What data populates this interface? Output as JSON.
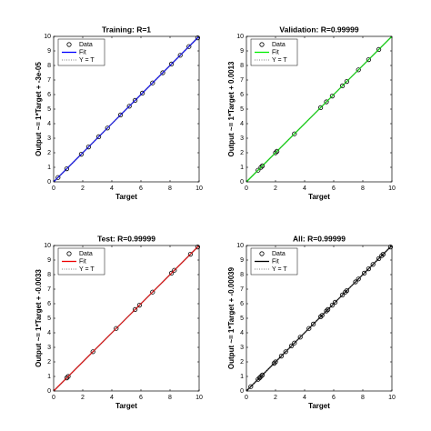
{
  "chart_data": [
    {
      "type": "scatter",
      "title": "Training: R=1",
      "x_label": "Target",
      "y_label": "Output ~= 1*Target + -3e-05",
      "xlim": [
        0,
        10
      ],
      "ylim": [
        0,
        10
      ],
      "xticks": [
        0,
        2,
        4,
        6,
        8,
        10
      ],
      "yticks": [
        0,
        1,
        2,
        3,
        4,
        5,
        6,
        7,
        8,
        9,
        10
      ],
      "legend": "upper left",
      "series": [
        {
          "name": "Data",
          "color": "#000000",
          "marker": "circle",
          "x": [
            0.3,
            0.9,
            1.9,
            2.4,
            3.1,
            3.7,
            4.6,
            5.2,
            5.6,
            6.1,
            6.8,
            7.5,
            8.1,
            8.7,
            9.3,
            9.9
          ],
          "values": [
            0.3,
            0.9,
            1.9,
            2.4,
            3.1,
            3.7,
            4.6,
            5.2,
            5.6,
            6.1,
            6.8,
            7.5,
            8.1,
            8.7,
            9.3,
            9.9
          ]
        },
        {
          "name": "Fit",
          "color": "#0000ff",
          "line_style": "solid",
          "x": [
            0,
            10
          ],
          "values": [
            0,
            10
          ]
        },
        {
          "name": "Y = T",
          "color": "#555555",
          "line_style": "dotted",
          "x": [
            0,
            10
          ],
          "values": [
            0,
            10
          ]
        }
      ]
    },
    {
      "type": "scatter",
      "title": "Validation: R=0.99999",
      "x_label": "Target",
      "y_label": "Output ~= 1*Target + 0.0013",
      "xlim": [
        0,
        10
      ],
      "ylim": [
        0,
        10
      ],
      "xticks": [
        0,
        2,
        4,
        6,
        8,
        10
      ],
      "yticks": [
        0,
        1,
        2,
        3,
        4,
        5,
        6,
        7,
        8,
        9,
        10
      ],
      "legend": "upper left",
      "series": [
        {
          "name": "Data",
          "color": "#000000",
          "marker": "circle",
          "x": [
            0.8,
            1.0,
            1.1,
            2.0,
            2.1,
            3.3,
            5.1,
            5.5,
            5.9,
            6.6,
            6.9,
            7.7,
            8.4,
            9.1
          ],
          "values": [
            0.8,
            1.0,
            1.1,
            2.0,
            2.1,
            3.3,
            5.1,
            5.5,
            5.9,
            6.6,
            6.9,
            7.7,
            8.4,
            9.1
          ]
        },
        {
          "name": "Fit",
          "color": "#00ee00",
          "line_style": "solid",
          "x": [
            0,
            10
          ],
          "values": [
            0,
            10
          ]
        },
        {
          "name": "Y = T",
          "color": "#555555",
          "line_style": "dotted",
          "x": [
            0,
            10
          ],
          "values": [
            0,
            10
          ]
        }
      ]
    },
    {
      "type": "scatter",
      "title": "Test: R=0.99999",
      "x_label": "Target",
      "y_label": "Output ~= 1*Target + -0.0033",
      "xlim": [
        0,
        10
      ],
      "ylim": [
        0,
        10
      ],
      "xticks": [
        0,
        2,
        4,
        6,
        8,
        10
      ],
      "yticks": [
        0,
        1,
        2,
        3,
        4,
        5,
        6,
        7,
        8,
        9,
        10
      ],
      "legend": "upper left",
      "series": [
        {
          "name": "Data",
          "color": "#000000",
          "marker": "circle",
          "x": [
            0.9,
            1.0,
            2.7,
            4.3,
            5.6,
            5.9,
            6.8,
            8.1,
            8.3,
            9.4,
            9.9
          ],
          "values": [
            0.9,
            1.0,
            2.7,
            4.3,
            5.6,
            5.9,
            6.8,
            8.1,
            8.3,
            9.4,
            9.9
          ]
        },
        {
          "name": "Fit",
          "color": "#ee0000",
          "line_style": "solid",
          "x": [
            0,
            10
          ],
          "values": [
            0,
            10
          ]
        },
        {
          "name": "Y = T",
          "color": "#555555",
          "line_style": "dotted",
          "x": [
            0,
            10
          ],
          "values": [
            0,
            10
          ]
        }
      ]
    },
    {
      "type": "scatter",
      "title": "All: R=0.99999",
      "x_label": "Target",
      "y_label": "Output ~= 1*Target + -0.00039",
      "xlim": [
        0,
        10
      ],
      "ylim": [
        0,
        10
      ],
      "xticks": [
        0,
        2,
        4,
        6,
        8,
        10
      ],
      "yticks": [
        0,
        1,
        2,
        3,
        4,
        5,
        6,
        7,
        8,
        9,
        10
      ],
      "legend": "upper left",
      "series": [
        {
          "name": "Data",
          "color": "#000000",
          "marker": "circle",
          "x": [
            0.3,
            0.8,
            0.9,
            1.0,
            1.1,
            1.9,
            2.0,
            2.4,
            2.7,
            3.1,
            3.3,
            3.7,
            4.3,
            4.6,
            5.1,
            5.2,
            5.5,
            5.6,
            5.9,
            6.1,
            6.6,
            6.8,
            6.9,
            7.5,
            7.7,
            8.1,
            8.4,
            8.7,
            9.1,
            9.3,
            9.4,
            9.9
          ],
          "values": [
            0.3,
            0.8,
            0.9,
            1.0,
            1.1,
            1.9,
            2.0,
            2.4,
            2.7,
            3.1,
            3.3,
            3.7,
            4.3,
            4.6,
            5.1,
            5.2,
            5.5,
            5.6,
            5.9,
            6.1,
            6.6,
            6.8,
            6.9,
            7.5,
            7.7,
            8.1,
            8.4,
            8.7,
            9.1,
            9.3,
            9.4,
            9.9
          ]
        },
        {
          "name": "Fit",
          "color": "#000000",
          "line_style": "solid",
          "x": [
            0,
            10
          ],
          "values": [
            0,
            10
          ]
        },
        {
          "name": "Y = T",
          "color": "#555555",
          "line_style": "dotted",
          "x": [
            0,
            10
          ],
          "values": [
            0,
            10
          ]
        }
      ]
    }
  ]
}
